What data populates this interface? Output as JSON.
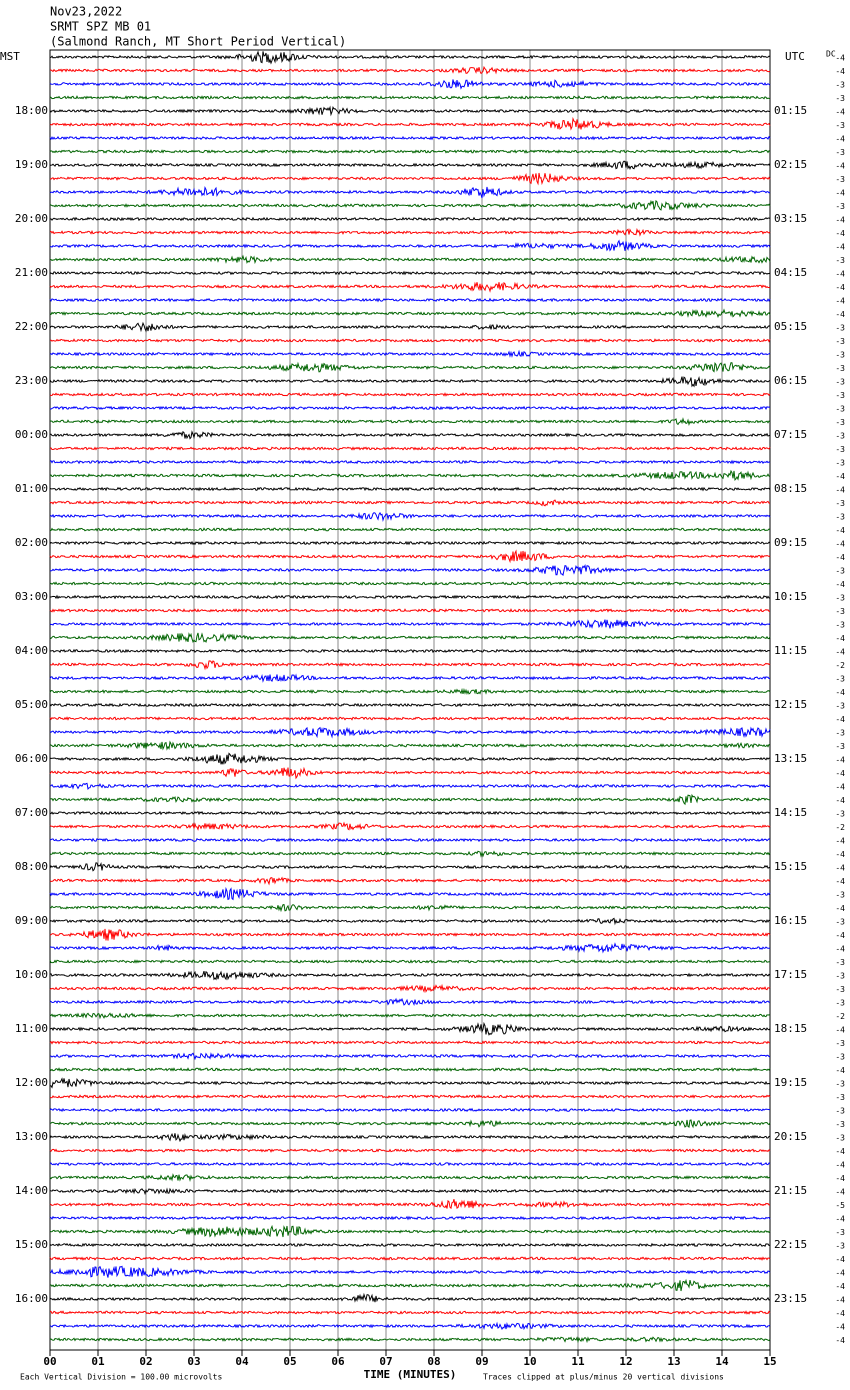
{
  "chart_data": {
    "type": "helicorder",
    "title": "Nov23,2022",
    "subtitle": "SRMT SPZ MB 01",
    "station": "(Salmond Ranch, MT Short Period Vertical)",
    "left_axis_label": "MST",
    "right_axis_label": "UTC",
    "left_times": [
      null,
      "18:00",
      "19:00",
      "20:00",
      "21:00",
      "22:00",
      "23:00",
      "00:00",
      "01:00",
      "02:00",
      "03:00",
      "04:00",
      "05:00",
      "06:00",
      "07:00",
      "08:00",
      "09:00",
      "10:00",
      "11:00",
      "12:00",
      "13:00",
      "14:00",
      "15:00",
      "16:00"
    ],
    "right_times": [
      null,
      "01:15",
      "02:15",
      "03:15",
      "04:15",
      "05:15",
      "06:15",
      "07:15",
      "08:15",
      "09:15",
      "10:15",
      "11:15",
      "12:15",
      "13:15",
      "14:15",
      "15:15",
      "16:15",
      "17:15",
      "18:15",
      "19:15",
      "20:15",
      "21:15",
      "22:15",
      "23:15"
    ],
    "dc_label": "DC",
    "dc_values": [
      -4,
      -4,
      -3,
      -3,
      -4,
      -3,
      -4,
      -3,
      -4,
      -3,
      -4,
      -3,
      -4,
      -4,
      -4,
      -3,
      -4,
      -4,
      -4,
      -4,
      -3,
      -3,
      -3,
      -3,
      -3,
      -3,
      -3,
      -3,
      -3,
      -3,
      -3,
      -4,
      -4,
      -3,
      -3,
      -4,
      -4,
      -4,
      -3,
      -4,
      -3,
      -3,
      -3,
      -4,
      -4,
      -2,
      -3,
      -4,
      -3,
      -4,
      -3,
      -3,
      -4,
      -4,
      -4,
      -4,
      -3,
      -2,
      -4,
      -4,
      -4,
      -4,
      -3,
      -4,
      -3,
      -4,
      -4,
      -3,
      -3,
      -3,
      -3,
      -2,
      -4,
      -3,
      -3,
      -4,
      -3,
      -3,
      -3,
      -3,
      -3,
      -4,
      -4,
      -4,
      -4,
      -5,
      -4,
      -3,
      -3,
      -4,
      -4,
      -4,
      -4,
      -4,
      -4,
      -4
    ],
    "trace_colors": [
      "#000000",
      "#ff0000",
      "#0000ff",
      "#006400"
    ],
    "xlabel": "TIME (MINUTES)",
    "xlim": [
      0,
      15
    ],
    "xticks": [
      {
        "value": 0,
        "label": "00"
      },
      {
        "value": 1,
        "label": "01"
      },
      {
        "value": 2,
        "label": "02"
      },
      {
        "value": 3,
        "label": "03"
      },
      {
        "value": 4,
        "label": "04"
      },
      {
        "value": 5,
        "label": "05"
      },
      {
        "value": 6,
        "label": "06"
      },
      {
        "value": 7,
        "label": "07"
      },
      {
        "value": 8,
        "label": "08"
      },
      {
        "value": 9,
        "label": "09"
      },
      {
        "value": 10,
        "label": "10"
      },
      {
        "value": 11,
        "label": "11"
      },
      {
        "value": 12,
        "label": "12"
      },
      {
        "value": 13,
        "label": "13"
      },
      {
        "value": 14,
        "label": "14"
      },
      {
        "value": 15,
        "label": "15"
      }
    ],
    "grid": true,
    "scale_note": "Each Vertical Division =  100.00 microvolts",
    "clip_note": "Traces clipped at plus/minus 20 vertical divisions"
  }
}
